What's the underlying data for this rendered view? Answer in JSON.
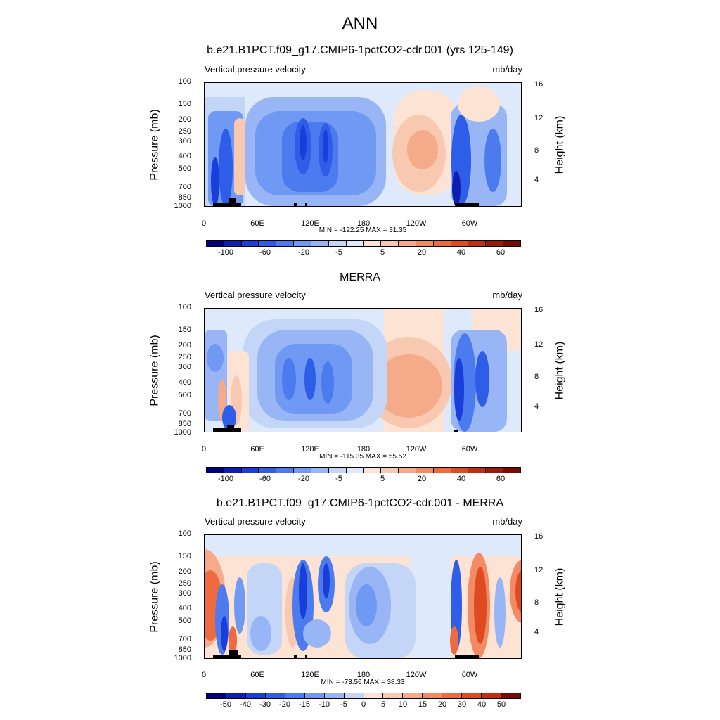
{
  "figure": {
    "title": "ANN"
  },
  "panels": [
    {
      "title": "b.e21.B1PCT.f09_g17.CMIP6-1pctCO2-cdr.001 (yrs 125-149)",
      "left_label": "Vertical pressure velocity",
      "right_label": "mb/day",
      "minmax": "MIN = -122.25  MAX =  31.35"
    },
    {
      "title": "MERRA",
      "left_label": "Vertical pressure velocity",
      "right_label": "mb/day",
      "minmax": "MIN = -115.35  MAX =  55.52"
    },
    {
      "title": "b.e21.B1PCT.f09_g17.CMIP6-1pctCO2-cdr.001 - MERRA",
      "left_label": "Vertical pressure velocity",
      "right_label": "mb/day",
      "minmax": "MIN = -73.56  MAX =  38.33"
    }
  ],
  "axes": {
    "ylabel": "Pressure (mb)",
    "y2label": "Height (km)",
    "pressure_ticks": [
      "100",
      "150",
      "200",
      "250",
      "300",
      "400",
      "500",
      "700",
      "850",
      "1000"
    ],
    "height_ticks": [
      "16",
      "12",
      "8",
      "4"
    ],
    "x_ticks": [
      "0",
      "60E",
      "120E",
      "180",
      "120W",
      "60W"
    ]
  },
  "colorbars": [
    {
      "labels": [
        "-100",
        "-60",
        "-20",
        "-5",
        "5",
        "20",
        "40",
        "60"
      ]
    },
    {
      "labels": [
        "-100",
        "-60",
        "-20",
        "-5",
        "5",
        "20",
        "40",
        "60"
      ]
    },
    {
      "labels": [
        "-50",
        "-40",
        "-30",
        "-20",
        "-15",
        "-10",
        "-5",
        "0",
        "5",
        "10",
        "15",
        "20",
        "30",
        "40",
        "50"
      ]
    }
  ],
  "colors": {
    "blues": [
      "#00007f",
      "#0d1fb3",
      "#1a3ed9",
      "#2e5de8",
      "#4b7bee",
      "#6f99f2",
      "#98b6f5",
      "#c3d6f8",
      "#deeafc"
    ],
    "reds": [
      "#fde3d4",
      "#f9c8b0",
      "#f5aa8a",
      "#f28b63",
      "#ee6a3f",
      "#e04a20",
      "#c03010",
      "#9a1c08",
      "#7a0a00"
    ]
  },
  "chart_data": [
    {
      "type": "heatmap",
      "title": "b.e21.B1PCT.f09_g17.CMIP6-1pctCO2-cdr.001 (yrs 125-149)",
      "xlabel": "",
      "ylabel": "Pressure (mb)",
      "units": "mb/day",
      "x": [
        "0",
        "60E",
        "120E",
        "180",
        "120W",
        "60W"
      ],
      "y_pressure": [
        100,
        150,
        200,
        250,
        300,
        400,
        500,
        700,
        850,
        1000
      ],
      "y_height_km": [
        16,
        12,
        8,
        4
      ],
      "levels": [
        -100,
        -60,
        -20,
        -5,
        5,
        20,
        40,
        60
      ],
      "min": -122.25,
      "max": 31.35
    },
    {
      "type": "heatmap",
      "title": "MERRA",
      "xlabel": "",
      "ylabel": "Pressure (mb)",
      "units": "mb/day",
      "x": [
        "0",
        "60E",
        "120E",
        "180",
        "120W",
        "60W"
      ],
      "y_pressure": [
        100,
        150,
        200,
        250,
        300,
        400,
        500,
        700,
        850,
        1000
      ],
      "y_height_km": [
        16,
        12,
        8,
        4
      ],
      "levels": [
        -100,
        -60,
        -20,
        -5,
        5,
        20,
        40,
        60
      ],
      "min": -115.35,
      "max": 55.52
    },
    {
      "type": "heatmap",
      "title": "b.e21.B1PCT.f09_g17.CMIP6-1pctCO2-cdr.001 - MERRA",
      "xlabel": "",
      "ylabel": "Pressure (mb)",
      "units": "mb/day",
      "x": [
        "0",
        "60E",
        "120E",
        "180",
        "120W",
        "60W"
      ],
      "y_pressure": [
        100,
        150,
        200,
        250,
        300,
        400,
        500,
        700,
        850,
        1000
      ],
      "y_height_km": [
        16,
        12,
        8,
        4
      ],
      "levels": [
        -50,
        -40,
        -30,
        -20,
        -15,
        -10,
        -5,
        0,
        5,
        10,
        15,
        20,
        30,
        40,
        50
      ],
      "min": -73.56,
      "max": 38.33
    }
  ]
}
